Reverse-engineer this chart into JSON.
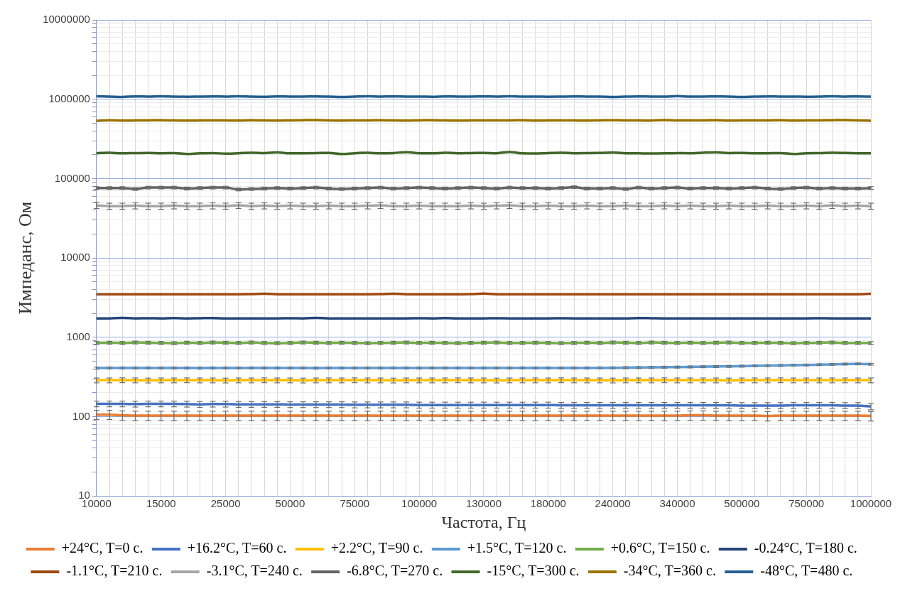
{
  "chart_data": {
    "type": "line",
    "xlabel": "Частота, Гц",
    "ylabel": "Импеданс, Ом",
    "log": "y",
    "grid": true,
    "legend": "bottom",
    "marker": "none",
    "line_style": "solid",
    "categories": [
      "10000",
      null,
      null,
      null,
      null,
      "15000",
      null,
      null,
      null,
      null,
      "25000",
      null,
      null,
      null,
      null,
      "50000",
      null,
      null,
      null,
      null,
      "75000",
      null,
      null,
      null,
      null,
      "100000",
      null,
      null,
      null,
      null,
      "130000",
      null,
      null,
      null,
      null,
      "180000",
      null,
      null,
      null,
      null,
      "240000",
      null,
      null,
      null,
      null,
      "340000",
      null,
      null,
      null,
      null,
      "500000",
      null,
      null,
      null,
      null,
      "750000",
      null,
      null,
      null,
      null,
      "1000000"
    ],
    "ylim": [
      10,
      10000000
    ],
    "yticks": [
      10,
      {
        "value": 20,
        "label": null
      },
      {
        "value": 30,
        "label": null
      },
      {
        "value": 40,
        "label": null
      },
      {
        "value": 50,
        "label": null
      },
      {
        "value": 60,
        "label": null
      },
      {
        "value": 70,
        "label": null
      },
      {
        "value": 80,
        "label": null
      },
      {
        "value": 90,
        "label": null
      },
      100,
      {
        "value": 200,
        "label": null
      },
      {
        "value": 300,
        "label": null
      },
      {
        "value": 400,
        "label": null
      },
      {
        "value": 500,
        "label": null
      },
      {
        "value": 600,
        "label": null
      },
      {
        "value": 700,
        "label": null
      },
      {
        "value": 800,
        "label": null
      },
      {
        "value": 900,
        "label": null
      },
      1000,
      {
        "value": 2000,
        "label": null
      },
      {
        "value": 3000,
        "label": null
      },
      {
        "value": 4000,
        "label": null
      },
      {
        "value": 5000,
        "label": null
      },
      {
        "value": 6000,
        "label": null
      },
      {
        "value": 7000,
        "label": null
      },
      {
        "value": 8000,
        "label": null
      },
      {
        "value": 9000,
        "label": null
      },
      10000,
      {
        "value": 20000,
        "label": null
      },
      {
        "value": 30000,
        "label": null
      },
      {
        "value": 40000,
        "label": null
      },
      {
        "value": 50000,
        "label": null
      },
      {
        "value": 60000,
        "label": null
      },
      {
        "value": 70000,
        "label": null
      },
      {
        "value": 80000,
        "label": null
      },
      {
        "value": 90000,
        "label": null
      },
      100000,
      {
        "value": 200000,
        "label": null
      },
      {
        "value": 300000,
        "label": null
      },
      {
        "value": 400000,
        "label": null
      },
      {
        "value": 500000,
        "label": null
      },
      {
        "value": 600000,
        "label": null
      },
      {
        "value": 700000,
        "label": null
      },
      {
        "value": 800000,
        "label": null
      },
      {
        "value": 900000,
        "label": null
      },
      1000000,
      {
        "value": 2000000,
        "label": null
      },
      {
        "value": 3000000,
        "label": null
      },
      {
        "value": 4000000,
        "label": null
      },
      {
        "value": 5000000,
        "label": null
      },
      {
        "value": 6000000,
        "label": null
      },
      {
        "value": 7000000,
        "label": null
      },
      {
        "value": 8000000,
        "label": null
      },
      {
        "value": 9000000,
        "label": null
      },
      10000000
    ],
    "series": [
      {
        "name": "+24°C, T=0 с.",
        "color": "#ed7d31",
        "values": [
          106,
          106,
          104,
          103,
          103,
          103,
          103,
          103,
          103,
          103,
          103,
          103,
          103,
          103,
          103,
          103,
          103,
          103,
          103,
          103,
          103,
          103,
          103,
          103,
          103,
          103,
          103,
          103,
          103,
          103,
          103,
          103,
          103,
          103,
          103,
          103,
          103,
          103,
          103,
          103,
          103,
          103,
          103,
          103,
          103,
          103,
          104,
          104,
          103,
          103,
          103,
          103,
          102,
          103,
          103,
          103,
          103,
          103,
          103,
          103,
          102
        ],
        "errors": [
          14,
          14,
          14,
          14,
          14,
          14,
          14,
          14,
          14,
          14,
          14,
          14,
          14,
          14,
          14,
          14,
          14,
          14,
          14,
          14,
          14,
          14,
          14,
          14,
          14,
          14,
          14,
          14,
          14,
          14,
          14,
          14,
          14,
          14,
          14,
          14,
          14,
          14,
          14,
          14,
          14,
          14,
          14,
          14,
          14,
          14,
          14,
          14,
          14,
          14,
          14,
          14,
          14,
          14,
          14,
          14,
          14,
          14,
          14,
          14,
          14
        ]
      },
      {
        "name": "+16.2°C, T=60 с.",
        "color": "#4472c4",
        "values": [
          145,
          145,
          145,
          144,
          145,
          145,
          145,
          144,
          143,
          144,
          144,
          143,
          143,
          143,
          143,
          142,
          142,
          142,
          142,
          142,
          141,
          141,
          141,
          141,
          141,
          140,
          140,
          140,
          140,
          140,
          140,
          140,
          140,
          140,
          140,
          140,
          139,
          139,
          139,
          139,
          139,
          139,
          139,
          139,
          139,
          139,
          139,
          139,
          139,
          139,
          138,
          138,
          138,
          138,
          139,
          139,
          139,
          139,
          138,
          138,
          134
        ],
        "errors": [
          12,
          12,
          12,
          12,
          12,
          12,
          12,
          12,
          12,
          12,
          12,
          12,
          12,
          12,
          12,
          12,
          12,
          12,
          12,
          12,
          12,
          12,
          12,
          12,
          12,
          12,
          12,
          12,
          12,
          12,
          12,
          12,
          12,
          12,
          12,
          12,
          12,
          12,
          12,
          12,
          12,
          12,
          12,
          12,
          12,
          12,
          12,
          12,
          12,
          12,
          12,
          12,
          12,
          12,
          12,
          12,
          12,
          12,
          12,
          12,
          12
        ]
      },
      {
        "name": "+2.2°C, T=90 с.",
        "color": "#ffc000",
        "values": [
          287,
          287,
          288,
          287,
          286,
          287,
          287,
          288,
          287,
          287,
          286,
          287,
          287,
          288,
          287,
          287,
          286,
          287,
          287,
          287,
          288,
          287,
          287,
          286,
          287,
          287,
          287,
          287,
          288,
          287,
          287,
          286,
          287,
          287,
          287,
          287,
          288,
          287,
          287,
          287,
          286,
          287,
          287,
          287,
          288,
          287,
          287,
          287,
          287,
          286,
          287,
          287,
          287,
          288,
          287,
          287,
          287,
          287,
          287,
          287,
          287
        ],
        "errors": [
          20,
          20,
          20,
          20,
          20,
          20,
          20,
          20,
          20,
          20,
          20,
          20,
          20,
          20,
          20,
          20,
          20,
          20,
          20,
          20,
          20,
          20,
          20,
          20,
          20,
          20,
          20,
          20,
          20,
          20,
          20,
          20,
          20,
          20,
          20,
          20,
          20,
          20,
          20,
          20,
          20,
          20,
          20,
          20,
          20,
          20,
          20,
          20,
          20,
          20,
          20,
          20,
          20,
          20,
          20,
          20,
          20,
          20,
          20,
          20,
          20
        ]
      },
      {
        "name": "+1.5°C, T=120 с.",
        "color": "#5b9bd5",
        "values": [
          409,
          410,
          410,
          410,
          411,
          410,
          410,
          410,
          409,
          410,
          410,
          410,
          411,
          410,
          410,
          410,
          410,
          409,
          410,
          410,
          410,
          410,
          410,
          411,
          410,
          410,
          410,
          410,
          410,
          410,
          410,
          410,
          410,
          411,
          410,
          410,
          410,
          410,
          410,
          411,
          412,
          414,
          416,
          418,
          420,
          422,
          424,
          426,
          428,
          430,
          433,
          436,
          439,
          442,
          445,
          448,
          452,
          456,
          460,
          462,
          458
        ],
        "errors": [
          12,
          12,
          12,
          12,
          12,
          12,
          12,
          12,
          12,
          12,
          12,
          12,
          12,
          12,
          12,
          12,
          12,
          12,
          12,
          12,
          12,
          12,
          12,
          12,
          12,
          12,
          12,
          12,
          12,
          12,
          12,
          12,
          12,
          12,
          12,
          12,
          12,
          12,
          12,
          12,
          12,
          12,
          12,
          12,
          12,
          12,
          12,
          12,
          12,
          12,
          12,
          12,
          12,
          12,
          12,
          12,
          12,
          12,
          12,
          12,
          12
        ]
      },
      {
        "name": "+0.6°C, T=150 с.",
        "color": "#70ad47",
        "values": [
          850,
          855,
          850,
          860,
          855,
          850,
          845,
          855,
          850,
          860,
          855,
          850,
          860,
          850,
          845,
          850,
          860,
          855,
          850,
          855,
          850,
          845,
          850,
          855,
          860,
          850,
          855,
          850,
          845,
          850,
          855,
          860,
          850,
          850,
          855,
          850,
          845,
          850,
          855,
          850,
          860,
          855,
          850,
          860,
          855,
          850,
          855,
          850,
          855,
          860,
          850,
          850,
          855,
          850,
          845,
          850,
          855,
          860,
          850,
          850,
          845
        ],
        "errors": [
          35,
          35,
          35,
          35,
          35,
          35,
          35,
          35,
          35,
          35,
          35,
          35,
          35,
          35,
          35,
          35,
          35,
          35,
          35,
          35,
          35,
          35,
          35,
          35,
          35,
          35,
          35,
          35,
          35,
          35,
          35,
          35,
          35,
          35,
          35,
          35,
          35,
          35,
          35,
          35,
          35,
          35,
          35,
          35,
          35,
          35,
          35,
          35,
          35,
          35,
          35,
          35,
          35,
          35,
          35,
          35,
          35,
          35,
          35,
          35,
          35
        ]
      },
      {
        "name": "-0.24°C, T=180 с.",
        "color": "#264478",
        "values": [
          1730,
          1730,
          1760,
          1730,
          1740,
          1730,
          1750,
          1730,
          1740,
          1750,
          1730,
          1730,
          1730,
          1730,
          1730,
          1740,
          1730,
          1760,
          1730,
          1730,
          1730,
          1730,
          1730,
          1730,
          1730,
          1740,
          1730,
          1750,
          1730,
          1730,
          1730,
          1740,
          1730,
          1730,
          1730,
          1730,
          1740,
          1730,
          1730,
          1730,
          1730,
          1730,
          1750,
          1740,
          1730,
          1730,
          1730,
          1730,
          1730,
          1730,
          1730,
          1730,
          1730,
          1730,
          1730,
          1730,
          1740,
          1730,
          1730,
          1730,
          1730
        ]
      },
      {
        "name": "-1.1°C, T=210 с.",
        "color": "#9e480e",
        "values": [
          3490,
          3490,
          3490,
          3480,
          3490,
          3490,
          3490,
          3490,
          3490,
          3490,
          3490,
          3490,
          3500,
          3540,
          3490,
          3490,
          3490,
          3490,
          3490,
          3490,
          3490,
          3490,
          3500,
          3540,
          3490,
          3490,
          3490,
          3490,
          3490,
          3500,
          3550,
          3490,
          3490,
          3490,
          3490,
          3490,
          3490,
          3490,
          3490,
          3490,
          3490,
          3490,
          3490,
          3490,
          3490,
          3490,
          3490,
          3490,
          3490,
          3490,
          3490,
          3490,
          3490,
          3490,
          3490,
          3490,
          3490,
          3480,
          3490,
          3490,
          3530
        ]
      },
      {
        "name": "-3.1°C, T=240 с.",
        "color": "#a5a5a5",
        "values": [
          46000,
          45000,
          45000,
          45500,
          45000,
          45000,
          45500,
          45000,
          45000,
          45500,
          45000,
          46000,
          45000,
          45500,
          45000,
          45500,
          45000,
          45000,
          45500,
          45000,
          45000,
          45500,
          46000,
          45000,
          45000,
          45500,
          45000,
          45000,
          45000,
          45500,
          45000,
          45500,
          46000,
          45000,
          45000,
          45500,
          45000,
          45000,
          45500,
          45000,
          45000,
          45500,
          45000,
          45000,
          45500,
          45000,
          45500,
          45000,
          45000,
          45500,
          45000,
          45000,
          45500,
          45000,
          45000,
          45500,
          45000,
          46000,
          45000,
          45500,
          45000
        ],
        "errors": [
          4000,
          4000,
          4000,
          4000,
          4000,
          4000,
          4000,
          4000,
          4000,
          4000,
          4000,
          4000,
          4000,
          4000,
          4000,
          4000,
          4000,
          4000,
          4000,
          4000,
          4000,
          4000,
          4000,
          4000,
          4000,
          4000,
          4000,
          4000,
          4000,
          4000,
          4000,
          4000,
          4000,
          4000,
          4000,
          4000,
          4000,
          4000,
          4000,
          4000,
          4000,
          4000,
          4000,
          4000,
          4000,
          4000,
          4000,
          4000,
          4000,
          4000,
          4000,
          4000,
          4000,
          4000,
          4000,
          4000,
          4000,
          4000,
          4000,
          4000,
          4000
        ]
      },
      {
        "name": "-6.8°C, T=270 с.",
        "color": "#636363",
        "values": [
          76000,
          76000,
          76000,
          74000,
          77000,
          77000,
          77000,
          75000,
          76000,
          77000,
          77000,
          73000,
          74000,
          75000,
          76000,
          75000,
          76000,
          77000,
          75000,
          74000,
          75000,
          76000,
          77000,
          75000,
          76000,
          77000,
          76000,
          75000,
          76000,
          77000,
          76000,
          75000,
          77000,
          76000,
          76000,
          75000,
          76000,
          78000,
          75000,
          75000,
          76000,
          74000,
          77000,
          75000,
          76000,
          77000,
          75000,
          76000,
          76000,
          75000,
          76000,
          77000,
          75000,
          74000,
          76000,
          77000,
          75000,
          76000,
          75000,
          75000,
          76000
        ],
        "errors": [
          3000,
          3000,
          3000,
          3000,
          3000,
          3000,
          3000,
          3000,
          3000,
          3000,
          3000,
          3000,
          3000,
          3000,
          3000,
          3000,
          3000,
          3000,
          3000,
          3000,
          3000,
          3000,
          3000,
          3000,
          3000,
          3000,
          3000,
          3000,
          3000,
          3000,
          3000,
          3000,
          3000,
          3000,
          3000,
          3000,
          3000,
          3000,
          3000,
          3000,
          3000,
          3000,
          3000,
          3000,
          3000,
          3000,
          3000,
          3000,
          3000,
          3000,
          3000,
          3000,
          3000,
          3000,
          3000,
          3000,
          3000,
          3000,
          3000,
          3000,
          3000
        ]
      },
      {
        "name": "-15°C, T=300 с.",
        "color": "#43682b",
        "values": [
          209000,
          212000,
          208000,
          210000,
          211000,
          209000,
          210000,
          204000,
          208000,
          210000,
          206000,
          209000,
          212000,
          210000,
          214000,
          208000,
          209000,
          210000,
          211000,
          204000,
          209000,
          212000,
          208000,
          210000,
          215000,
          209000,
          208000,
          212000,
          209000,
          210000,
          211000,
          209000,
          216000,
          208000,
          207000,
          210000,
          212000,
          209000,
          210000,
          211000,
          213000,
          209000,
          208000,
          207000,
          208000,
          210000,
          209000,
          212000,
          214000,
          210000,
          211000,
          208000,
          209000,
          210000,
          204000,
          209000,
          210000,
          212000,
          211000,
          209000,
          208000
        ]
      },
      {
        "name": "-34°C, T=360 с.",
        "color": "#997300",
        "values": [
          535000,
          545000,
          538000,
          540000,
          542000,
          545000,
          540000,
          538000,
          540000,
          542000,
          540000,
          538000,
          545000,
          540000,
          538000,
          542000,
          545000,
          548000,
          540000,
          538000,
          542000,
          540000,
          545000,
          540000,
          538000,
          542000,
          545000,
          540000,
          538000,
          540000,
          542000,
          540000,
          540000,
          545000,
          538000,
          540000,
          542000,
          540000,
          538000,
          542000,
          545000,
          540000,
          540000,
          538000,
          548000,
          540000,
          542000,
          540000,
          545000,
          538000,
          540000,
          542000,
          540000,
          545000,
          538000,
          540000,
          542000,
          545000,
          548000,
          540000,
          536000
        ]
      },
      {
        "name": "-48°C, T=480 с.",
        "color": "#255e91",
        "values": [
          1090000,
          1080000,
          1070000,
          1085000,
          1080000,
          1090000,
          1080000,
          1075000,
          1080000,
          1085000,
          1080000,
          1090000,
          1080000,
          1075000,
          1085000,
          1080000,
          1080000,
          1085000,
          1080000,
          1070000,
          1080000,
          1090000,
          1080000,
          1085000,
          1080000,
          1080000,
          1075000,
          1085000,
          1080000,
          1080000,
          1085000,
          1080000,
          1090000,
          1080000,
          1080000,
          1075000,
          1080000,
          1085000,
          1080000,
          1080000,
          1070000,
          1080000,
          1085000,
          1080000,
          1080000,
          1095000,
          1080000,
          1080000,
          1085000,
          1080000,
          1070000,
          1080000,
          1085000,
          1080000,
          1080000,
          1075000,
          1080000,
          1090000,
          1080000,
          1085000,
          1080000
        ]
      }
    ]
  }
}
